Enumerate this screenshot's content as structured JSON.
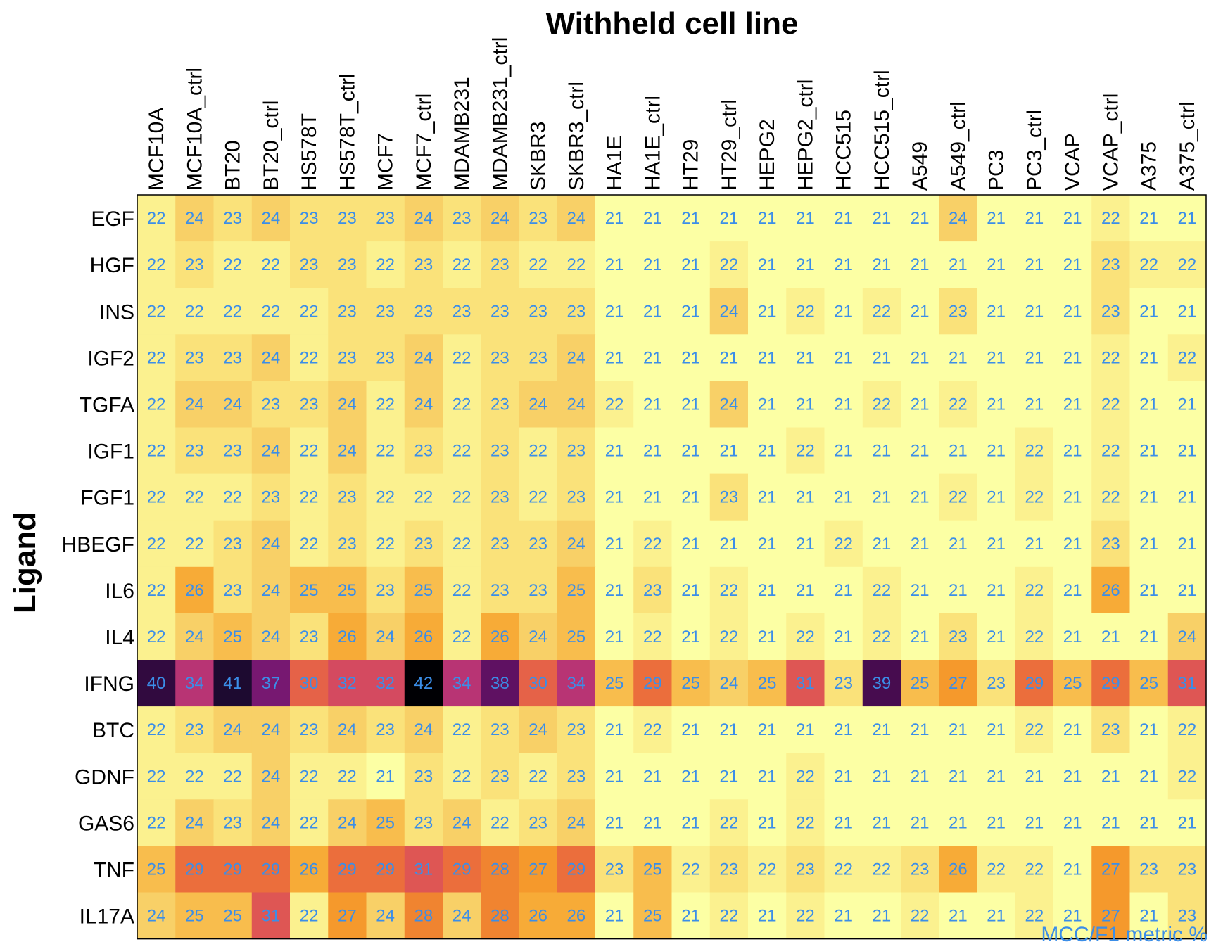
{
  "chart_data": {
    "type": "heatmap",
    "title": "Withheld cell line",
    "xlabel": "Withheld cell line",
    "ylabel": "Ligand",
    "colorbar_caption": "MCC/F1 metric %",
    "colormap": "inferno (reversed)",
    "value_range": [
      21,
      42
    ],
    "grid": false,
    "columns": [
      "MCF10A",
      "MCF10A_ctrl",
      "BT20",
      "BT20_ctrl",
      "HS578T",
      "HS578T_ctrl",
      "MCF7",
      "MCF7_ctrl",
      "MDAMB231",
      "MDAMB231_ctrl",
      "SKBR3",
      "SKBR3_ctrl",
      "HA1E",
      "HA1E_ctrl",
      "HT29",
      "HT29_ctrl",
      "HEPG2",
      "HEPG2_ctrl",
      "HCC515",
      "HCC515_ctrl",
      "A549",
      "A549_ctrl",
      "PC3",
      "PC3_ctrl",
      "VCAP",
      "VCAP_ctrl",
      "A375",
      "A375_ctrl"
    ],
    "rows": [
      "EGF",
      "HGF",
      "INS",
      "IGF2",
      "TGFA",
      "IGF1",
      "FGF1",
      "HBEGF",
      "IL6",
      "IL4",
      "IFNG",
      "BTC",
      "GDNF",
      "GAS6",
      "TNF",
      "IL17A"
    ],
    "values": [
      [
        22,
        24,
        23,
        24,
        23,
        23,
        23,
        24,
        23,
        24,
        23,
        24,
        21,
        21,
        21,
        21,
        21,
        21,
        21,
        21,
        21,
        24,
        21,
        21,
        21,
        22,
        21,
        21
      ],
      [
        22,
        23,
        22,
        22,
        23,
        23,
        22,
        23,
        22,
        23,
        22,
        22,
        21,
        21,
        21,
        22,
        21,
        21,
        21,
        21,
        21,
        21,
        21,
        21,
        21,
        23,
        22,
        22
      ],
      [
        22,
        22,
        22,
        22,
        22,
        23,
        23,
        23,
        23,
        23,
        23,
        23,
        21,
        21,
        21,
        24,
        21,
        22,
        21,
        22,
        21,
        23,
        21,
        21,
        21,
        23,
        21,
        21
      ],
      [
        22,
        23,
        23,
        24,
        22,
        23,
        23,
        24,
        22,
        23,
        23,
        24,
        21,
        21,
        21,
        21,
        21,
        21,
        21,
        21,
        21,
        21,
        21,
        21,
        21,
        22,
        21,
        22
      ],
      [
        22,
        24,
        24,
        23,
        23,
        24,
        22,
        24,
        22,
        23,
        24,
        24,
        22,
        21,
        21,
        24,
        21,
        21,
        21,
        22,
        21,
        22,
        21,
        21,
        21,
        22,
        21,
        21
      ],
      [
        22,
        23,
        23,
        24,
        22,
        24,
        22,
        23,
        22,
        23,
        22,
        23,
        21,
        21,
        21,
        21,
        21,
        22,
        21,
        21,
        21,
        21,
        21,
        22,
        21,
        22,
        21,
        21
      ],
      [
        22,
        22,
        22,
        23,
        22,
        23,
        22,
        22,
        22,
        23,
        22,
        23,
        21,
        21,
        21,
        23,
        21,
        21,
        21,
        21,
        21,
        22,
        21,
        22,
        21,
        22,
        21,
        21
      ],
      [
        22,
        22,
        23,
        24,
        22,
        23,
        22,
        23,
        22,
        23,
        23,
        24,
        21,
        22,
        21,
        21,
        21,
        21,
        22,
        21,
        21,
        21,
        21,
        21,
        21,
        23,
        21,
        21
      ],
      [
        22,
        26,
        23,
        24,
        25,
        25,
        23,
        25,
        22,
        23,
        23,
        25,
        21,
        23,
        21,
        22,
        21,
        21,
        21,
        22,
        21,
        21,
        21,
        22,
        21,
        26,
        21,
        21
      ],
      [
        22,
        24,
        25,
        24,
        23,
        26,
        24,
        26,
        22,
        26,
        24,
        25,
        21,
        22,
        21,
        22,
        21,
        22,
        21,
        22,
        21,
        23,
        21,
        22,
        21,
        21,
        21,
        24
      ],
      [
        40,
        34,
        41,
        37,
        30,
        32,
        32,
        42,
        34,
        38,
        30,
        34,
        25,
        29,
        25,
        24,
        25,
        31,
        23,
        39,
        25,
        27,
        23,
        29,
        25,
        29,
        25,
        31
      ],
      [
        22,
        23,
        24,
        24,
        23,
        24,
        23,
        24,
        22,
        23,
        24,
        23,
        21,
        22,
        21,
        21,
        21,
        21,
        21,
        21,
        21,
        21,
        21,
        22,
        21,
        23,
        21,
        22
      ],
      [
        22,
        22,
        22,
        24,
        22,
        22,
        21,
        23,
        22,
        23,
        22,
        23,
        21,
        21,
        21,
        21,
        21,
        22,
        21,
        21,
        21,
        21,
        21,
        21,
        21,
        21,
        21,
        22
      ],
      [
        22,
        24,
        23,
        24,
        22,
        24,
        25,
        23,
        24,
        22,
        23,
        24,
        21,
        21,
        21,
        22,
        21,
        22,
        21,
        21,
        21,
        21,
        21,
        21,
        21,
        21,
        21,
        21
      ],
      [
        25,
        29,
        29,
        29,
        26,
        29,
        29,
        31,
        29,
        28,
        27,
        29,
        23,
        25,
        22,
        23,
        22,
        23,
        22,
        22,
        23,
        26,
        22,
        22,
        21,
        27,
        23,
        23
      ],
      [
        24,
        25,
        25,
        31,
        22,
        27,
        24,
        28,
        24,
        28,
        26,
        26,
        21,
        25,
        21,
        22,
        21,
        22,
        21,
        21,
        22,
        21,
        21,
        22,
        21,
        27,
        21,
        23
      ]
    ]
  }
}
